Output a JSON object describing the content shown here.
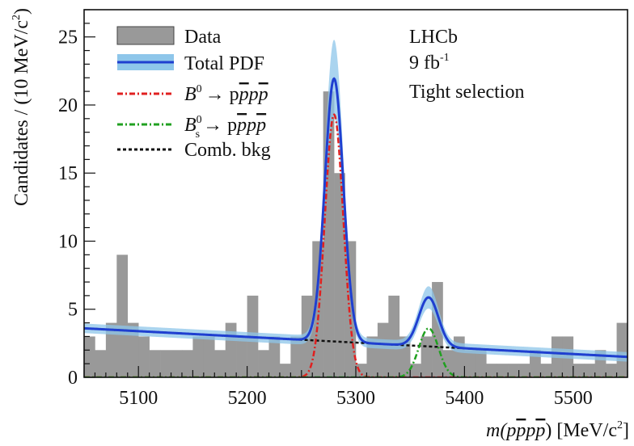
{
  "chart_data": {
    "type": "bar",
    "xlabel_parts": [
      "m(p",
      "p",
      "p",
      "p",
      ") [MeV/c",
      "2",
      "]"
    ],
    "ylabel_parts": [
      "Candidates / (10 MeV/c",
      "2",
      ")"
    ],
    "xlim": [
      5050,
      5550
    ],
    "ylim": [
      0,
      27
    ],
    "x_ticks": [
      "5100",
      "5200",
      "5300",
      "5400",
      "5500"
    ],
    "x_tick_values": [
      5100,
      5200,
      5300,
      5400,
      5500
    ],
    "y_ticks": [
      "0",
      "5",
      "10",
      "15",
      "20",
      "25"
    ],
    "y_tick_values": [
      0,
      5,
      10,
      15,
      20,
      25
    ],
    "bin_width": 10,
    "bin_starts": [
      5050,
      5060,
      5070,
      5080,
      5090,
      5100,
      5110,
      5120,
      5130,
      5140,
      5150,
      5160,
      5170,
      5180,
      5190,
      5200,
      5210,
      5220,
      5230,
      5240,
      5250,
      5260,
      5270,
      5280,
      5290,
      5300,
      5310,
      5320,
      5330,
      5340,
      5350,
      5360,
      5370,
      5380,
      5390,
      5400,
      5410,
      5420,
      5430,
      5440,
      5450,
      5460,
      5470,
      5480,
      5490,
      5500,
      5510,
      5520,
      5530,
      5540
    ],
    "counts": [
      3,
      2,
      4,
      9,
      4,
      3,
      2,
      2,
      2,
      2,
      3,
      3,
      2,
      4,
      3,
      6,
      2,
      3,
      1,
      3,
      6,
      10,
      21,
      15,
      10,
      1,
      3,
      4,
      6,
      3,
      1,
      3,
      7,
      2,
      3,
      2,
      2,
      1,
      1,
      1,
      1,
      2,
      1,
      3,
      3,
      1,
      1,
      2,
      1,
      4
    ],
    "series": [
      {
        "name": "Data",
        "kind": "histogram",
        "color": "#999999"
      },
      {
        "name": "Total PDF",
        "kind": "curve",
        "color": "#1f3fd0",
        "band_color": "#8ec6ea"
      },
      {
        "name_parts": [
          "B",
          "0",
          "→ p",
          "p",
          "p",
          "p"
        ],
        "kind": "curve",
        "color": "#e02020",
        "mean": 5280,
        "sigma": 8.5,
        "amplitude": 19.3
      },
      {
        "name_parts": [
          "B",
          "0",
          "s",
          "→ p",
          "p",
          "p",
          "p"
        ],
        "kind": "curve",
        "color": "#20a020",
        "mean": 5367,
        "sigma": 9,
        "amplitude": 3.6
      },
      {
        "name": "Comb. bkg",
        "kind": "curve",
        "color": "#111111",
        "bkg_start": 3.6,
        "bkg_slope": 0.0042
      }
    ],
    "annotations": {
      "experiment": "LHCb",
      "lumi_value": "9 fb",
      "lumi_exp": "-1",
      "selection": "Tight selection"
    }
  }
}
